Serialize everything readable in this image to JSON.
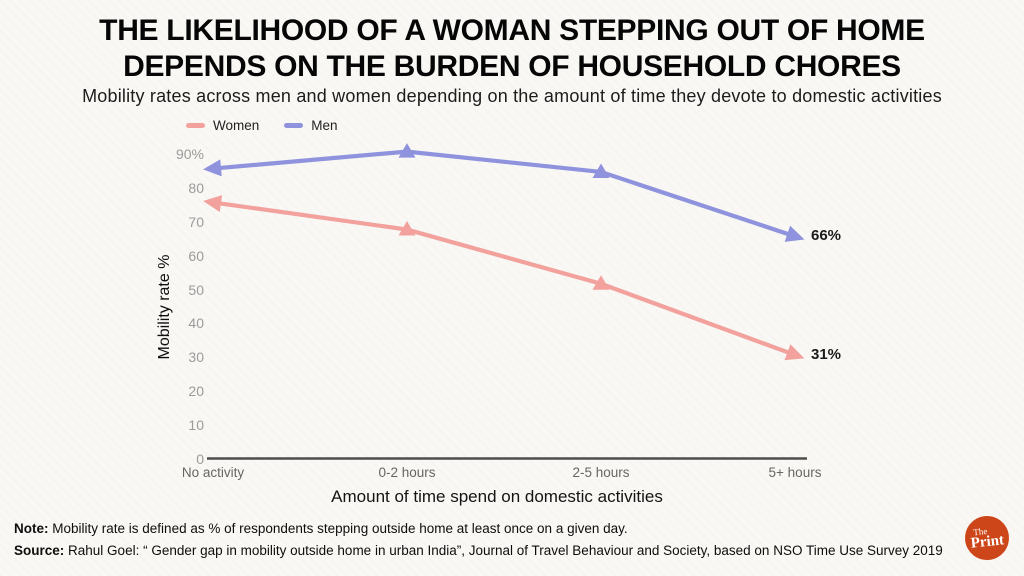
{
  "header": {
    "title_line1": "THE LIKELIHOOD OF A WOMAN STEPPING OUT OF HOME",
    "title_line2": "DEPENDS ON THE BURDEN OF HOUSEHOLD CHORES",
    "subtitle": "Mobility rates across men and women depending on the amount of time they devote to domestic activities"
  },
  "chart_data": {
    "type": "line",
    "title": "THE LIKELIHOOD OF A WOMAN STEPPING OUT OF HOME DEPENDS ON THE BURDEN OF HOUSEHOLD CHORES",
    "subtitle": "Mobility rates across men and women depending on the amount of time they devote to domestic activities",
    "categories": [
      "No activity",
      "0-2 hours",
      "2-5 hours",
      "5+ hours"
    ],
    "series": [
      {
        "name": "Women",
        "color": "#f2a19c",
        "values": [
          76,
          68,
          52,
          31
        ],
        "end_label": "31%"
      },
      {
        "name": "Men",
        "color": "#8f93de",
        "values": [
          86,
          91,
          85,
          66
        ],
        "end_label": "66%"
      }
    ],
    "xlabel": "Amount of time spend on domestic activities",
    "ylabel": "Mobility rate %",
    "y_tick_values": [
      0,
      10,
      20,
      30,
      40,
      50,
      60,
      70,
      80,
      90
    ],
    "y_tick_labels": [
      "0",
      "10",
      "20",
      "30",
      "40",
      "50",
      "60",
      "70",
      "80",
      "90%"
    ],
    "ylim": [
      0,
      95
    ],
    "grid": false,
    "legend_position": "top-left",
    "marker": "triangle-arrow",
    "axis_color": "#4d4d4d",
    "y_tick_color": "#9b9b9b",
    "x_tick_color": "#666666"
  },
  "footer": {
    "note_label": "Note:",
    "note_text": "Mobility rate is defined as % of respondents stepping outside home at least once on a given day.",
    "source_label": "Source:",
    "source_text": "Rahul Goel: “ Gender gap in mobility outside home in urban India”, Journal of Travel Behaviour and Society, based on NSO Time Use Survey 2019",
    "logo": {
      "top": "The",
      "bottom": "Print",
      "color": "#cd4619"
    }
  }
}
